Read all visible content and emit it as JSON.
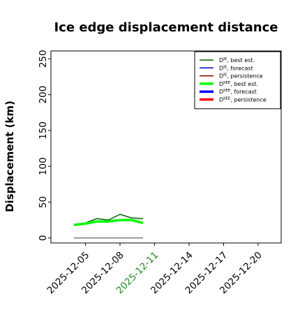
{
  "chart_data": {
    "type": "line",
    "title": "Ice edge displacement distance",
    "xlabel": "",
    "ylabel": "Displacement (km)",
    "ylim": [
      -7,
      261
    ],
    "yticks": [
      0,
      50,
      100,
      150,
      200,
      250
    ],
    "xlim": [
      "2025-12-02",
      "2025-12-22"
    ],
    "xticks": [
      "2025-12-05",
      "2025-12-08",
      "2025-12-11",
      "2025-12-14",
      "2025-12-17",
      "2025-12-20"
    ],
    "highlight_tick": "2025-12-11",
    "highlight_color": "#228b22",
    "grid": false,
    "legend_placement": "top-right",
    "legend": [
      {
        "base": "D",
        "sup": "IE",
        "text": ", best est.",
        "color": "#006400",
        "width": 1.5
      },
      {
        "base": "D",
        "sup": "IE",
        "text": ", forecast",
        "color": "#0000cd",
        "width": 1.5
      },
      {
        "base": "D",
        "sup": "IE",
        "text": ", persistence",
        "color": "#8b0000",
        "width": 1.5
      },
      {
        "base": "D",
        "sup": "IIEE",
        "text": ", best est.",
        "color": "#00ff00",
        "width": 3.5
      },
      {
        "base": "D",
        "sup": "IIEE",
        "text": ", forecast",
        "color": "#0000ff",
        "width": 3.5
      },
      {
        "base": "D",
        "sup": "IIEE",
        "text": ", persistence",
        "color": "#ff0000",
        "width": 3.5
      }
    ],
    "series": [
      {
        "color": "#006400",
        "width": 1.5,
        "x": [
          "2025-12-04",
          "2025-12-05",
          "2025-12-06",
          "2025-12-07",
          "2025-12-08",
          "2025-12-09",
          "2025-12-10"
        ],
        "values": [
          19,
          21,
          27,
          25,
          33,
          28,
          27
        ]
      },
      {
        "color": "#00ff00",
        "width": 3.5,
        "x": [
          "2025-12-04",
          "2025-12-05",
          "2025-12-06",
          "2025-12-07",
          "2025-12-08",
          "2025-12-09",
          "2025-12-10"
        ],
        "values": [
          18,
          20,
          23,
          23,
          25,
          25,
          21
        ]
      },
      {
        "color": "#808080",
        "width": 1.5,
        "x": [
          "2025-12-04",
          "2025-12-10"
        ],
        "values": [
          0,
          0
        ]
      }
    ]
  }
}
